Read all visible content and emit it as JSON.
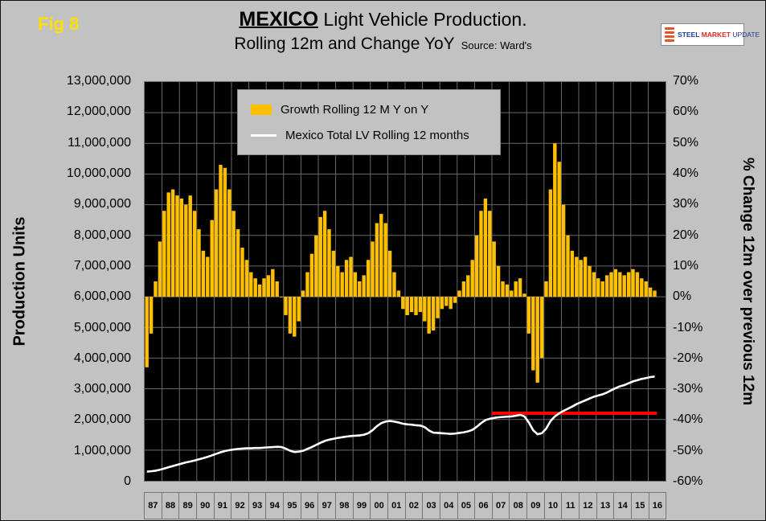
{
  "figure": {
    "label": "Fig 8"
  },
  "header": {
    "title_bold": "MEXICO",
    "title_rest": " Light Vehicle Production.",
    "subtitle": "Rolling 12m and Change YoY",
    "source": "Source: Ward's"
  },
  "logo": {
    "word1": "STEEL",
    "word2": "MARKET",
    "word3": "UPDATE"
  },
  "axes": {
    "left_title": "Production Units",
    "right_title": "% Change 12m over previous 12m"
  },
  "legend": {
    "items": [
      {
        "label": "Growth Rolling 12 M Y on Y",
        "color": "#FFC000",
        "marker": "bar"
      },
      {
        "label": "Mexico Total LV Rolling 12 months",
        "color": "#FFFFFF",
        "marker": "line"
      }
    ]
  },
  "colors": {
    "page_bg": "#C2C2C2",
    "plot_bg": "#000000",
    "grid": "#6A6A6A",
    "bar": "#FFC000",
    "line": "#FFFFFF",
    "reference": "#FF0000",
    "fig_label": "#FFDF00"
  },
  "chart_data": {
    "type": "combo",
    "title": "MEXICO Light Vehicle Production. Rolling 12m and Change YoY",
    "source": "Source: Ward's",
    "grid": true,
    "legend_position": "top-center-inside",
    "x_start_year": 1987,
    "x_step_years": 0.25,
    "x_span_years": 30,
    "x_tick_labels": [
      "87",
      "88",
      "89",
      "90",
      "91",
      "92",
      "93",
      "94",
      "95",
      "96",
      "97",
      "98",
      "99",
      "00",
      "01",
      "02",
      "03",
      "04",
      "05",
      "06",
      "07",
      "08",
      "09",
      "10",
      "11",
      "12",
      "13",
      "14",
      "15",
      "16"
    ],
    "left_axis": {
      "title": "Production Units",
      "min": 0,
      "max": 13000000,
      "step": 1000000,
      "tick_labels": [
        "0",
        "1,000,000",
        "2,000,000",
        "3,000,000",
        "4,000,000",
        "5,000,000",
        "6,000,000",
        "7,000,000",
        "8,000,000",
        "9,000,000",
        "10,000,000",
        "11,000,000",
        "12,000,000",
        "13,000,000"
      ]
    },
    "right_axis": {
      "title": "% Change 12m over previous 12m",
      "min": -60,
      "max": 70,
      "step": 10,
      "unit": "%",
      "tick_labels": [
        "-60%",
        "-50%",
        "-40%",
        "-30%",
        "-20%",
        "-10%",
        "0%",
        "10%",
        "20%",
        "30%",
        "40%",
        "50%",
        "60%",
        "70%"
      ]
    },
    "series": [
      {
        "name": "Growth Rolling 12 M Y on Y",
        "type": "bar",
        "axis": "right",
        "unit": "percent",
        "color": "#FFC000",
        "values": [
          -23,
          -12,
          5,
          18,
          28,
          34,
          35,
          33,
          32,
          30,
          33,
          28,
          22,
          15,
          13,
          25,
          35,
          43,
          42,
          35,
          28,
          22,
          16,
          12,
          8,
          6,
          4,
          6,
          7,
          9,
          5,
          0,
          -6,
          -12,
          -13,
          -8,
          2,
          8,
          14,
          20,
          26,
          28,
          22,
          15,
          10,
          8,
          12,
          13,
          8,
          5,
          7,
          12,
          18,
          24,
          27,
          24,
          15,
          8,
          2,
          -4,
          -6,
          -5,
          -6,
          -5,
          -8,
          -12,
          -11,
          -7,
          -4,
          -3,
          -4,
          -2,
          2,
          5,
          7,
          12,
          20,
          28,
          32,
          28,
          18,
          10,
          5,
          4,
          2,
          5,
          6,
          1,
          -12,
          -24,
          -28,
          -20,
          5,
          35,
          50,
          44,
          30,
          20,
          15,
          13,
          12,
          13,
          10,
          8,
          6,
          5,
          7,
          8,
          9,
          8,
          7,
          8,
          9,
          8,
          6,
          5,
          3,
          2
        ]
      },
      {
        "name": "Mexico Total LV Rolling 12 months",
        "type": "line",
        "axis": "left",
        "unit": "million units",
        "color": "#FFFFFF",
        "values_millions": [
          0.3,
          0.31,
          0.33,
          0.36,
          0.4,
          0.44,
          0.48,
          0.52,
          0.56,
          0.6,
          0.63,
          0.66,
          0.7,
          0.74,
          0.78,
          0.83,
          0.88,
          0.93,
          0.97,
          1.0,
          1.02,
          1.04,
          1.05,
          1.06,
          1.06,
          1.07,
          1.07,
          1.08,
          1.09,
          1.1,
          1.11,
          1.1,
          1.05,
          0.98,
          0.94,
          0.95,
          0.98,
          1.04,
          1.1,
          1.17,
          1.24,
          1.3,
          1.34,
          1.37,
          1.4,
          1.42,
          1.44,
          1.46,
          1.47,
          1.48,
          1.5,
          1.55,
          1.65,
          1.78,
          1.88,
          1.93,
          1.95,
          1.93,
          1.9,
          1.86,
          1.84,
          1.83,
          1.81,
          1.8,
          1.75,
          1.64,
          1.57,
          1.56,
          1.55,
          1.54,
          1.53,
          1.54,
          1.56,
          1.58,
          1.61,
          1.66,
          1.76,
          1.88,
          1.98,
          2.02,
          2.05,
          2.07,
          2.08,
          2.09,
          2.1,
          2.12,
          2.15,
          2.1,
          1.9,
          1.65,
          1.52,
          1.55,
          1.7,
          1.95,
          2.1,
          2.2,
          2.28,
          2.35,
          2.42,
          2.5,
          2.56,
          2.62,
          2.68,
          2.74,
          2.78,
          2.82,
          2.88,
          2.95,
          3.02,
          3.08,
          3.12,
          3.18,
          3.24,
          3.28,
          3.32,
          3.35,
          3.38,
          3.4
        ]
      }
    ],
    "reference_line": {
      "axis": "left",
      "value_units": 2200000,
      "x_start_year": 2007,
      "x_end_year": 2016.5,
      "color": "#FF0000"
    }
  }
}
